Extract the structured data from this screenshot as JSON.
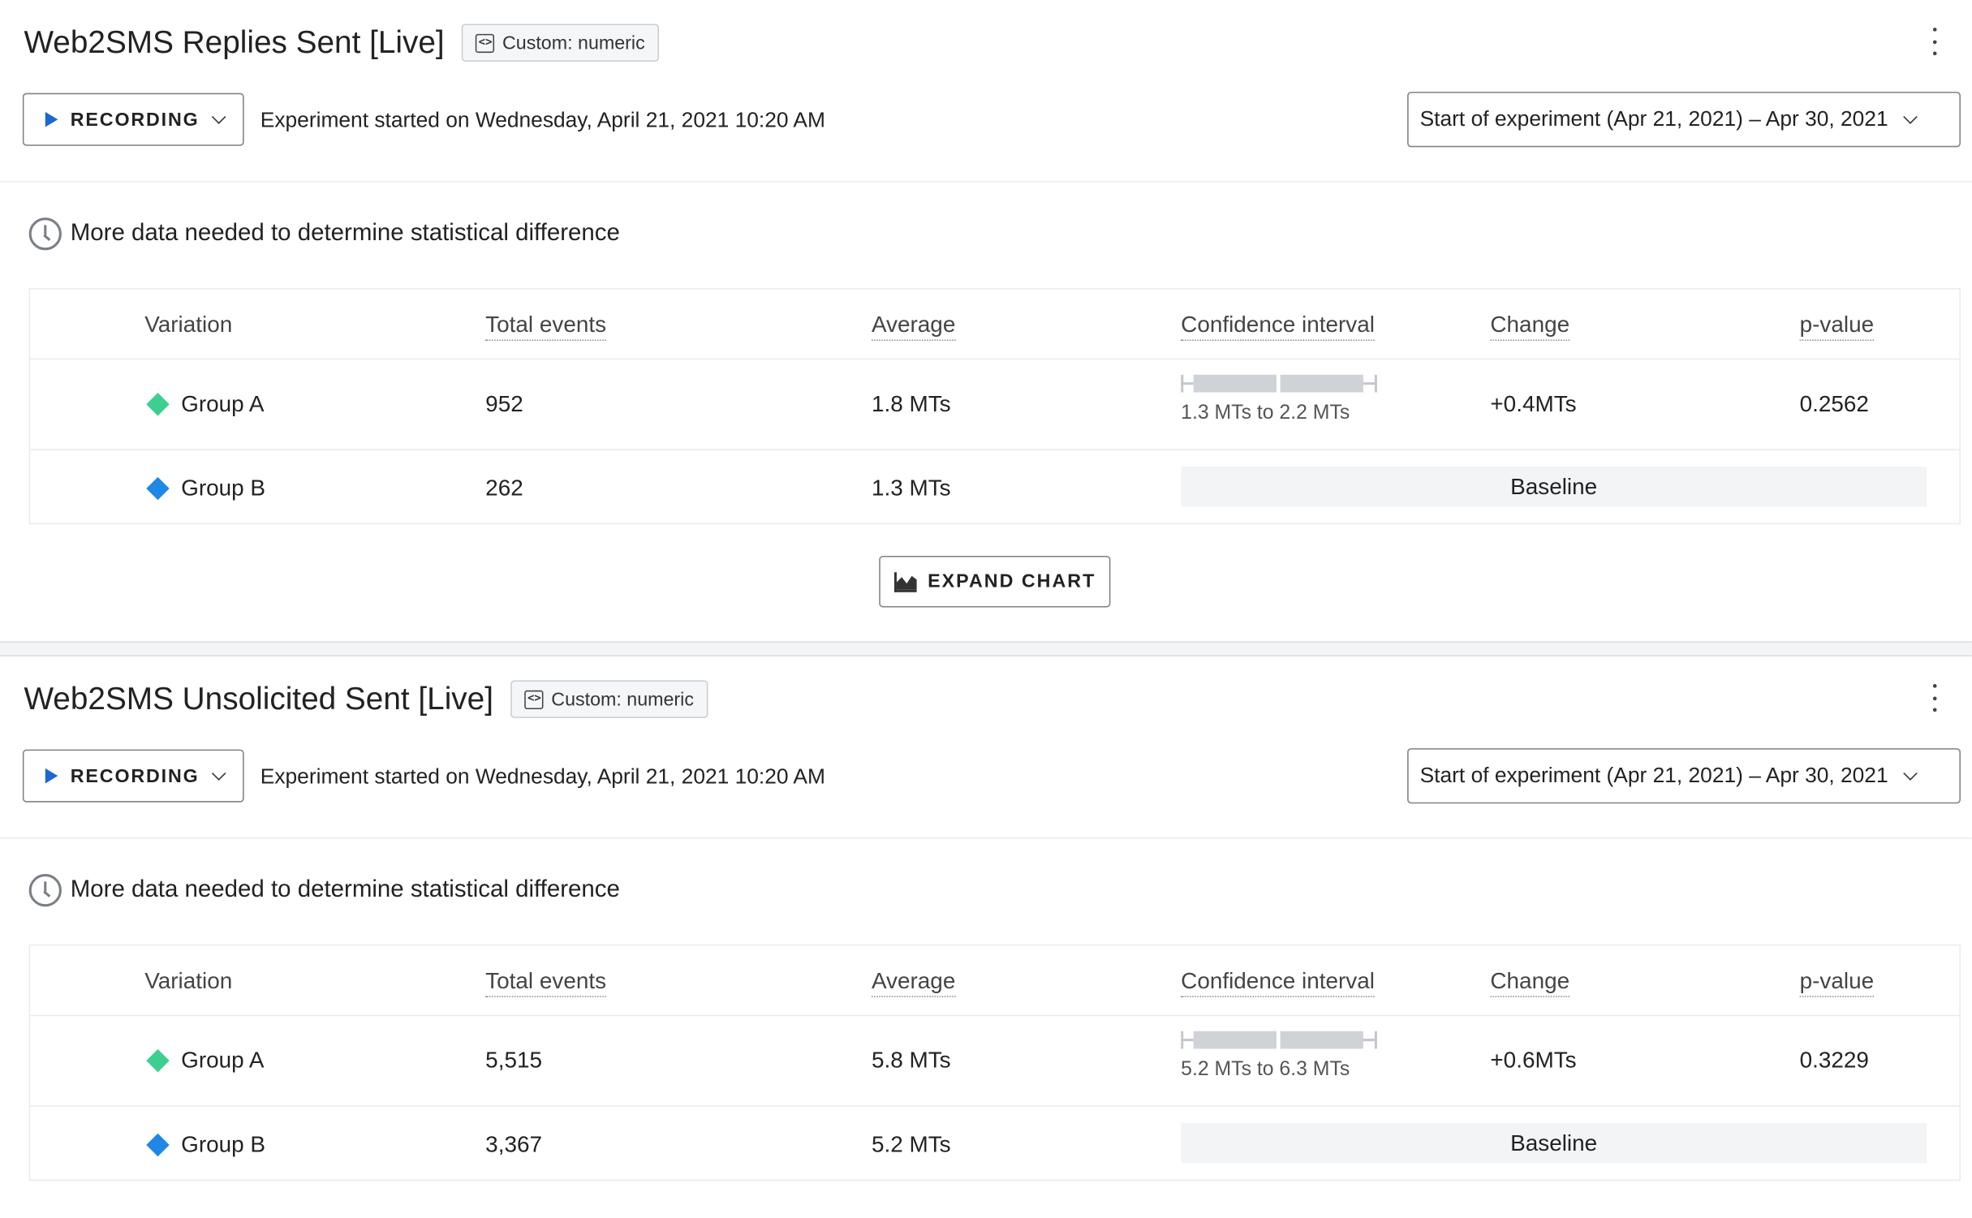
{
  "metrics": [
    {
      "title": "Web2SMS Replies Sent [Live]",
      "badge": "Custom: numeric",
      "recording_label": "RECORDING",
      "started_text": "Experiment started on Wednesday, April 21, 2021 10:20 AM",
      "date_range": "Start of experiment (Apr 21, 2021) – Apr 30, 2021",
      "status_text": "More data needed to determine statistical difference",
      "columns": [
        "Variation",
        "Total events",
        "Average",
        "Confidence interval",
        "Change",
        "p-value"
      ],
      "rows": [
        {
          "variation": "Group A",
          "color": "#3ccf91",
          "total_events": "952",
          "average": "1.8 MTs",
          "ci_label": "1.3 MTs to 2.2 MTs",
          "change": "+0.4MTs",
          "p_value": "0.2562"
        },
        {
          "variation": "Group B",
          "color": "#1f87e5",
          "total_events": "262",
          "average": "1.3 MTs",
          "baseline": "Baseline"
        }
      ],
      "expand_label": "EXPAND CHART"
    },
    {
      "title": "Web2SMS Unsolicited Sent [Live]",
      "badge": "Custom: numeric",
      "recording_label": "RECORDING",
      "started_text": "Experiment started on Wednesday, April 21, 2021 10:20 AM",
      "date_range": "Start of experiment (Apr 21, 2021) – Apr 30, 2021",
      "status_text": "More data needed to determine statistical difference",
      "columns": [
        "Variation",
        "Total events",
        "Average",
        "Confidence interval",
        "Change",
        "p-value"
      ],
      "rows": [
        {
          "variation": "Group A",
          "color": "#3ccf91",
          "total_events": "5,515",
          "average": "5.8 MTs",
          "ci_label": "5.2 MTs to 6.3 MTs",
          "change": "+0.6MTs",
          "p_value": "0.3229"
        },
        {
          "variation": "Group B",
          "color": "#1f87e5",
          "total_events": "3,367",
          "average": "5.2 MTs",
          "baseline": "Baseline"
        }
      ]
    }
  ],
  "icons": {
    "type_badge": "code-icon",
    "recording": "play-icon",
    "dropdown": "chevron-down-icon",
    "status": "clock-icon",
    "menu": "kebab-menu-icon",
    "expand": "area-chart-icon",
    "variation_marker": "diamond-icon"
  }
}
